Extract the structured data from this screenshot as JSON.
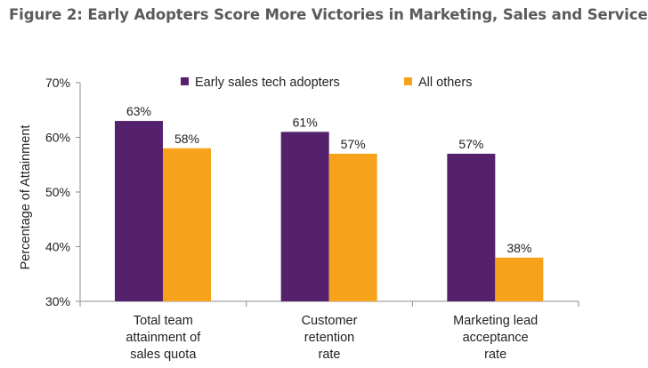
{
  "figure_title": "Figure 2: Early Adopters Score More Victories in Marketing, Sales and Service",
  "colors": {
    "series_a": "#55216d",
    "series_b": "#f7a21b",
    "axis": "#8c8c8c"
  },
  "chart_data": {
    "type": "bar",
    "title": "",
    "ylabel": "Percentage of Attainment",
    "xlabel": "",
    "ylim": [
      30,
      70
    ],
    "yticks": [
      30,
      40,
      50,
      60,
      70
    ],
    "ytick_labels": [
      "30%",
      "40%",
      "50%",
      "60%",
      "70%"
    ],
    "grid": false,
    "legend_position": "top",
    "categories": [
      "Total team attainment of sales quota",
      "Customer retention rate",
      "Marketing lead acceptance rate"
    ],
    "category_lines": [
      [
        "Total team",
        "attainment of",
        "sales quota"
      ],
      [
        "Customer",
        "retention",
        "rate"
      ],
      [
        "Marketing lead",
        "acceptance",
        "rate"
      ]
    ],
    "series": [
      {
        "name": "Early sales tech adopters",
        "values": [
          63,
          61,
          57
        ],
        "labels": [
          "63%",
          "61%",
          "57%"
        ]
      },
      {
        "name": "All others",
        "values": [
          58,
          57,
          38
        ],
        "labels": [
          "58%",
          "57%",
          "38%"
        ]
      }
    ]
  }
}
